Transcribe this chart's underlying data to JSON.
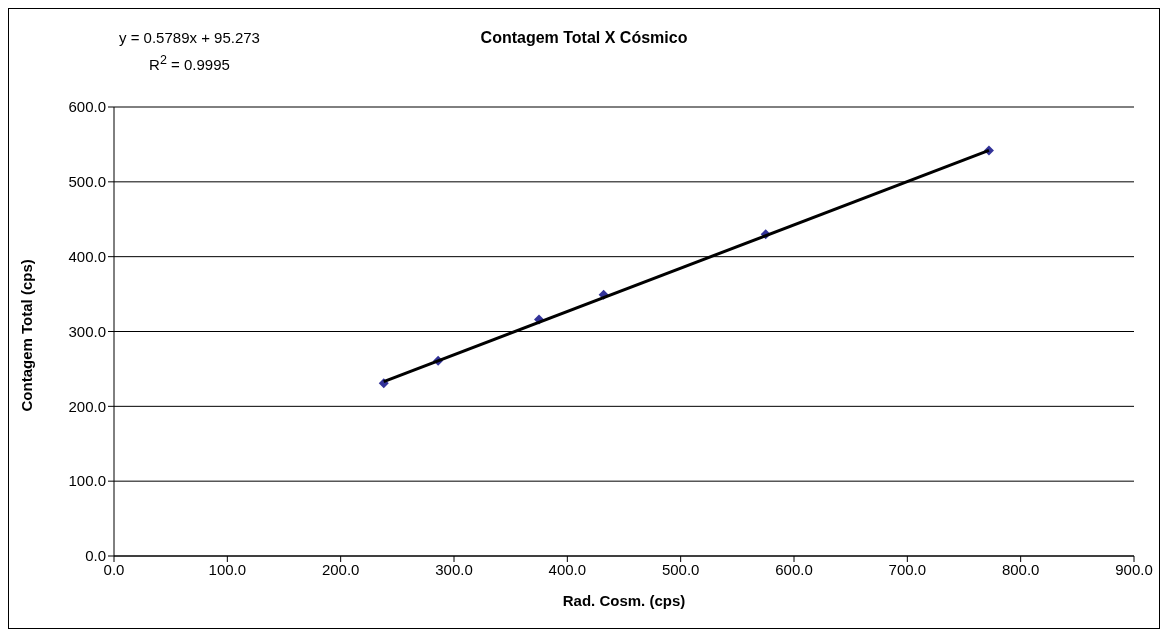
{
  "chart_data": {
    "type": "scatter",
    "title": "Contagem Total X Cósmico",
    "xlabel": "Rad. Cosm. (cps)",
    "ylabel": "Contagem Total (cps)",
    "annotations": [
      "y = 0.5789x + 95.273",
      "R$^{2}$ = 0.9995"
    ],
    "x": [
      238,
      286,
      375,
      432,
      575,
      772
    ],
    "series": [
      {
        "color": "#333399",
        "values": [
          231,
          261,
          316,
          349,
          430,
          542
        ]
      },
      {
        "type": "line",
        "color": "#000000",
        "marker": "none",
        "x": [
          238,
          772
        ],
        "values": [
          233,
          542
        ]
      }
    ],
    "marker": "diamond",
    "grid": "y",
    "legend": false,
    "xlim": [
      0,
      900
    ],
    "xticks": [
      {
        "value": 0,
        "label": "0.0"
      },
      {
        "value": 100,
        "label": "100.0"
      },
      {
        "value": 200,
        "label": "200.0"
      },
      {
        "value": 300,
        "label": "300.0"
      },
      {
        "value": 400,
        "label": "400.0"
      },
      {
        "value": 500,
        "label": "500.0"
      },
      {
        "value": 600,
        "label": "600.0"
      },
      {
        "value": 700,
        "label": "700.0"
      },
      {
        "value": 800,
        "label": "800.0"
      },
      {
        "value": 900,
        "label": "900.0"
      }
    ],
    "ylim": [
      0,
      600
    ],
    "yticks": [
      {
        "value": 0,
        "label": "0.0"
      },
      {
        "value": 100,
        "label": "100.0"
      },
      {
        "value": 200,
        "label": "200.0"
      },
      {
        "value": 300,
        "label": "300.0"
      },
      {
        "value": 400,
        "label": "400.0"
      },
      {
        "value": 500,
        "label": "500.0"
      },
      {
        "value": 600,
        "label": "600.0"
      }
    ]
  }
}
